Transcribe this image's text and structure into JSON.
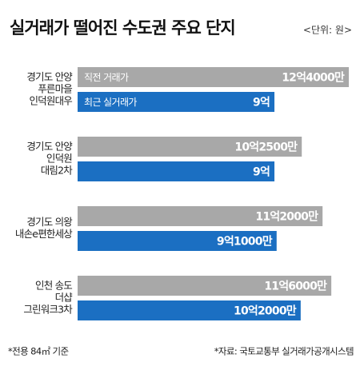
{
  "chart_data": {
    "type": "bar",
    "orientation": "horizontal",
    "title": "실거래가 떨어진 수도권 주요 단지",
    "subtitle": "<단위: 원>",
    "categories": [
      [
        "경기도 안양",
        "푸른마을",
        "인덕원대우"
      ],
      [
        "경기도 안양",
        "인덕원",
        "대림2차"
      ],
      [
        "경기도 의왕",
        "내손e편한세상"
      ],
      [
        "인천 송도",
        "더샵",
        "그린워크3차"
      ]
    ],
    "series": [
      {
        "name": "직전 거래가",
        "color": "#a8a8a8",
        "values": [
          12.4,
          10.25,
          11.2,
          11.6
        ],
        "value_labels": [
          "12억4000만",
          "10억2500만",
          "11억2000만",
          "11억6000만"
        ]
      },
      {
        "name": "최근 실거래가",
        "color": "#1b6fc2",
        "values": [
          9,
          9,
          9.1,
          10.2
        ],
        "value_labels": [
          "9억",
          "9억",
          "9억1000만",
          "10억2000만"
        ]
      }
    ],
    "notes": [
      "*전용 84㎡ 기준",
      "*자료: 국토교통부 실거래가공개시스템"
    ]
  }
}
